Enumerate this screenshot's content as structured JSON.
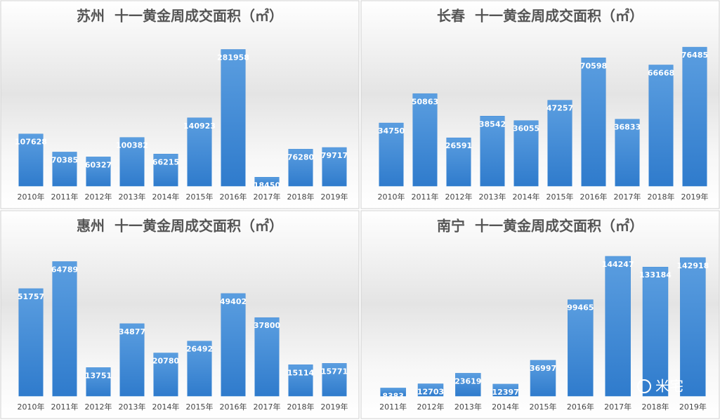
{
  "chart_data": [
    {
      "type": "bar",
      "title": "苏州  十一黄金周成交面积（㎡）",
      "categories": [
        "2010年",
        "2011年",
        "2012年",
        "2013年",
        "2014年",
        "2015年",
        "2016年",
        "2017年",
        "2018年",
        "2019年"
      ],
      "values": [
        107628,
        70385,
        60327,
        100382,
        66215,
        140923,
        281958,
        18450,
        76280,
        79717
      ],
      "color": "#3f8ad6",
      "ylim": [
        0,
        300000
      ]
    },
    {
      "type": "bar",
      "title": "长春  十一黄金周成交面积（㎡）",
      "categories": [
        "2010年",
        "2011年",
        "2012年",
        "2013年",
        "2014年",
        "2015年",
        "2016年",
        "2017年",
        "2018年",
        "2019年"
      ],
      "values": [
        34750,
        50863,
        26591,
        38542,
        36055,
        47257,
        70598,
        36833,
        66668,
        76485
      ],
      "color": "#3f8ad6",
      "ylim": [
        0,
        80000
      ]
    },
    {
      "type": "bar",
      "title": "惠州  十一黄金周成交面积（㎡）",
      "categories": [
        "2010年",
        "2011年",
        "2012年",
        "2013年",
        "2014年",
        "2015年",
        "2016年",
        "2017年",
        "2018年",
        "2019年"
      ],
      "values": [
        51757,
        64789,
        13751,
        34877,
        20780,
        26492,
        49402,
        37800,
        15114,
        15771
      ],
      "color": "#3f8ad6",
      "ylim": [
        0,
        70000
      ]
    },
    {
      "type": "bar",
      "title": "南宁  十一黄金周成交面积（㎡）",
      "categories": [
        "2011年",
        "2012年",
        "2013年",
        "2014年",
        "2015年",
        "2016年",
        "2017年",
        "2018年",
        "2019年"
      ],
      "values": [
        8383,
        12703,
        23619,
        12397,
        36997,
        99465,
        144247,
        133184,
        142918
      ],
      "color": "#3f8ad6",
      "ylim": [
        0,
        150000
      ],
      "watermark": "米宅"
    }
  ]
}
